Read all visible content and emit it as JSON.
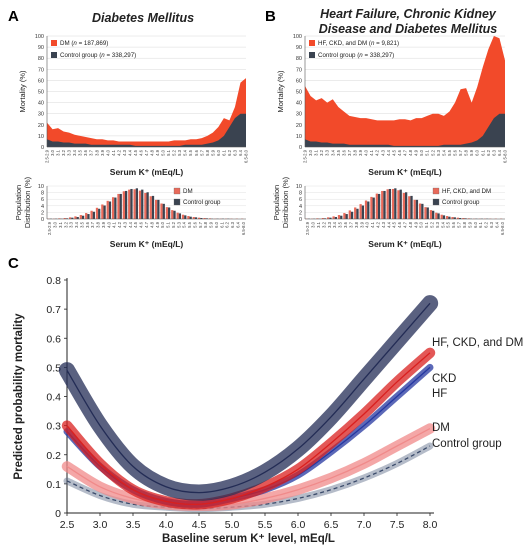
{
  "panel_letters": {
    "a": "A",
    "b": "B",
    "c": "C"
  },
  "colors": {
    "red": "#f24a2a",
    "dark": "#3a4350",
    "navy": "#232c55",
    "mid_red": "#d9201f",
    "blue": "#2537a0",
    "pink": "#f08a8a",
    "gray_dash": "#5a6a88"
  },
  "chart_data": [
    {
      "id": "A-mortality",
      "type": "area",
      "title": "Diabetes Mellitus",
      "ylabel": "Mortality (%)",
      "xlabel": "Serum K⁺ (mEq/L)",
      "ylim": [
        0,
        100
      ],
      "yticks": [
        0,
        10,
        20,
        30,
        40,
        50,
        60,
        70,
        80,
        90,
        100
      ],
      "legend_position": "top-left",
      "x_categories": [
        "2.5-2.9",
        "3.0",
        "3.1",
        "3.2",
        "3.3",
        "3.4",
        "3.5",
        "3.6",
        "3.7",
        "3.8",
        "3.9",
        "4.0",
        "4.1",
        "4.2",
        "4.3",
        "4.4",
        "4.5",
        "4.6",
        "4.7",
        "4.8",
        "4.9",
        "5.0",
        "5.1",
        "5.2",
        "5.3",
        "5.4",
        "5.5",
        "5.6",
        "5.7",
        "5.8",
        "5.9",
        "6.0",
        "6.1",
        "6.2",
        "6.3",
        "6.4",
        "6.5-8.0"
      ],
      "series": [
        {
          "name": "DM (n = 187,869)",
          "color": "#f24a2a",
          "values": [
            22,
            16,
            17,
            14,
            13,
            11,
            10,
            9,
            8,
            7,
            7,
            6,
            6,
            5,
            5,
            5,
            5,
            5,
            5,
            5,
            5,
            5,
            5,
            6,
            6,
            6,
            7,
            7,
            8,
            10,
            13,
            18,
            26,
            24,
            36,
            58,
            62
          ]
        },
        {
          "name": "Control group (n = 338,297)",
          "color": "#3a4350",
          "values": [
            7,
            5,
            5,
            4,
            4,
            3,
            3,
            3,
            2,
            2,
            2,
            2,
            2,
            2,
            2,
            2,
            1,
            1,
            1,
            1,
            1,
            1,
            1,
            1,
            1,
            2,
            2,
            2,
            2,
            3,
            4,
            6,
            10,
            18,
            26,
            30,
            30
          ]
        }
      ]
    },
    {
      "id": "A-distribution",
      "type": "bar",
      "ylabel": "Population Distribution (%)",
      "xlabel": "Serum K⁺ (mEq/L)",
      "ylim": [
        0,
        10
      ],
      "yticks": [
        0,
        2,
        4,
        6,
        8,
        10
      ],
      "legend_position": "right",
      "series": [
        {
          "name": "DM",
          "color": "#e86a5a",
          "values": [
            0.1,
            0.1,
            0.2,
            0.3,
            0.5,
            0.8,
            1.2,
            1.8,
            2.5,
            3.4,
            4.4,
            5.5,
            6.6,
            7.6,
            8.4,
            8.9,
            9.0,
            8.6,
            7.9,
            6.9,
            5.8,
            4.7,
            3.6,
            2.7,
            1.9,
            1.3,
            0.9,
            0.6,
            0.4,
            0.3,
            0.2,
            0.1,
            0.1,
            0.1,
            0.1,
            0.1,
            0.1
          ]
        },
        {
          "name": "Control group",
          "color": "#3a4350",
          "values": [
            0.1,
            0.1,
            0.1,
            0.2,
            0.4,
            0.6,
            1.0,
            1.5,
            2.2,
            3.1,
            4.1,
            5.3,
            6.5,
            7.6,
            8.5,
            9.1,
            9.3,
            8.9,
            8.1,
            7.0,
            5.8,
            4.6,
            3.5,
            2.5,
            1.7,
            1.1,
            0.7,
            0.5,
            0.3,
            0.2,
            0.1,
            0.1,
            0.1,
            0.1,
            0.0,
            0.0,
            0.0
          ]
        }
      ]
    },
    {
      "id": "B-mortality",
      "type": "area",
      "title": "Heart Failure, Chronic Kidney Disease and Diabetes Mellitus",
      "title_lines": [
        "Heart Failure, Chronic Kidney",
        "Disease and Diabetes Mellitus"
      ],
      "ylabel": "Mortality (%)",
      "xlabel": "Serum K⁺ (mEq/L)",
      "ylim": [
        0,
        100
      ],
      "yticks": [
        0,
        10,
        20,
        30,
        40,
        50,
        60,
        70,
        80,
        90,
        100
      ],
      "legend_position": "top-left",
      "x_categories": [
        "2.5-2.9",
        "3.0",
        "3.1",
        "3.2",
        "3.3",
        "3.4",
        "3.5",
        "3.6",
        "3.7",
        "3.8",
        "3.9",
        "4.0",
        "4.1",
        "4.2",
        "4.3",
        "4.4",
        "4.5",
        "4.6",
        "4.7",
        "4.8",
        "4.9",
        "5.0",
        "5.1",
        "5.2",
        "5.3",
        "5.4",
        "5.5",
        "5.6",
        "5.7",
        "5.8",
        "5.9",
        "6.0",
        "6.1",
        "6.2",
        "6.3",
        "6.4",
        "6.5-8.0"
      ],
      "series": [
        {
          "name": "HF, CKD, and DM (n = 9,821)",
          "color": "#f24a2a",
          "values": [
            55,
            46,
            42,
            44,
            40,
            43,
            36,
            32,
            28,
            27,
            26,
            26,
            25,
            24,
            24,
            24,
            24,
            25,
            25,
            24,
            26,
            26,
            28,
            30,
            30,
            28,
            32,
            40,
            52,
            53,
            40,
            54,
            72,
            88,
            100,
            98,
            78
          ]
        },
        {
          "name": "Control group (n = 338,297)",
          "color": "#3a4350",
          "values": [
            7,
            5,
            5,
            4,
            4,
            3,
            3,
            3,
            2,
            2,
            2,
            2,
            2,
            2,
            2,
            2,
            1,
            1,
            1,
            1,
            1,
            1,
            1,
            1,
            1,
            2,
            2,
            2,
            2,
            3,
            4,
            6,
            10,
            18,
            26,
            30,
            30
          ]
        }
      ]
    },
    {
      "id": "B-distribution",
      "type": "bar",
      "ylabel": "Population Distribution (%)",
      "xlabel": "Serum K⁺ (mEq/L)",
      "ylim": [
        0,
        10
      ],
      "yticks": [
        0,
        2,
        4,
        6,
        8,
        10
      ],
      "legend_position": "right",
      "series": [
        {
          "name": "HF, CKD, and DM",
          "color": "#e86a5a",
          "values": [
            0.1,
            0.1,
            0.2,
            0.3,
            0.5,
            0.8,
            1.2,
            1.8,
            2.6,
            3.5,
            4.5,
            5.6,
            6.7,
            7.7,
            8.5,
            9.0,
            9.1,
            8.7,
            7.9,
            6.9,
            5.8,
            4.7,
            3.6,
            2.7,
            1.9,
            1.3,
            0.9,
            0.6,
            0.4,
            0.3,
            0.2,
            0.1,
            0.1,
            0.1,
            0.1,
            0.1,
            0.1
          ]
        },
        {
          "name": "Control group",
          "color": "#3a4350",
          "values": [
            0.1,
            0.1,
            0.1,
            0.2,
            0.4,
            0.6,
            1.0,
            1.5,
            2.2,
            3.1,
            4.1,
            5.3,
            6.5,
            7.6,
            8.5,
            9.1,
            9.3,
            8.9,
            8.1,
            7.0,
            5.8,
            4.6,
            3.5,
            2.5,
            1.7,
            1.1,
            0.7,
            0.5,
            0.3,
            0.2,
            0.1,
            0.1,
            0.1,
            0.1,
            0.0,
            0.0,
            0.0
          ]
        }
      ]
    },
    {
      "id": "C-predicted",
      "type": "line",
      "ylabel": "Predicted probability mortality",
      "xlabel": "Baseline serum K⁺ level, mEq/L",
      "xlim": [
        2.5,
        8.0
      ],
      "ylim": [
        0,
        0.8
      ],
      "xticks": [
        "2.5",
        "3.0",
        "3.5",
        "4.0",
        "4.5",
        "5.0",
        "5.5",
        "6.0",
        "6.5",
        "7.0",
        "7.5",
        "8.0"
      ],
      "yticks": [
        "0",
        "0.1",
        "0.2",
        "0.3",
        "0.4",
        "0.5",
        "0.6",
        "0.7",
        "0.8"
      ],
      "grid": false,
      "x": [
        2.5,
        3.0,
        3.5,
        4.0,
        4.5,
        5.0,
        5.5,
        6.0,
        6.5,
        7.0,
        7.5,
        8.0
      ],
      "series": [
        {
          "name": "HF, CKD, and DM",
          "color": "#232c55",
          "band": 0.028,
          "values": [
            0.49,
            0.3,
            0.16,
            0.09,
            0.07,
            0.09,
            0.14,
            0.22,
            0.33,
            0.46,
            0.59,
            0.72
          ]
        },
        {
          "name": "CKD",
          "color": "#d9201f",
          "band": 0.018,
          "values": [
            0.3,
            0.17,
            0.08,
            0.04,
            0.03,
            0.05,
            0.09,
            0.15,
            0.24,
            0.34,
            0.45,
            0.55
          ]
        },
        {
          "name": "HF",
          "color": "#2537a0",
          "band": 0.012,
          "values": [
            0.28,
            0.16,
            0.08,
            0.04,
            0.03,
            0.05,
            0.08,
            0.13,
            0.21,
            0.3,
            0.4,
            0.5
          ]
        },
        {
          "name": "DM",
          "color": "#f08a8a",
          "band": 0.018,
          "values": [
            0.16,
            0.09,
            0.05,
            0.03,
            0.025,
            0.03,
            0.05,
            0.08,
            0.12,
            0.17,
            0.23,
            0.29
          ]
        },
        {
          "name": "Control group",
          "color": "#5a6a88",
          "band": 0.012,
          "dashed": true,
          "values": [
            0.11,
            0.06,
            0.03,
            0.02,
            0.015,
            0.02,
            0.03,
            0.05,
            0.08,
            0.12,
            0.17,
            0.23
          ]
        }
      ]
    }
  ]
}
